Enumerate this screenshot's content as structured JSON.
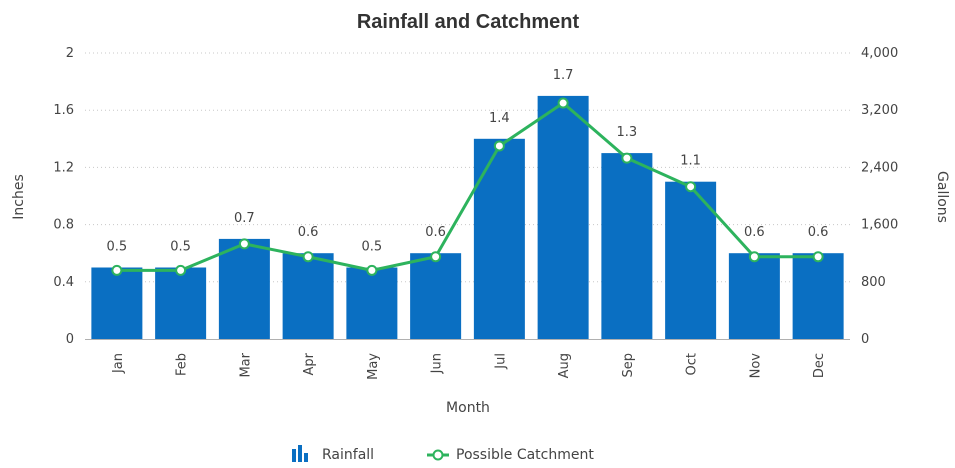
{
  "chart_data": {
    "type": "bar",
    "title": "Rainfall and Catchment",
    "xlabel": "Month",
    "ylabel": "Inches",
    "y2label": "Gallons",
    "categories": [
      "Jan",
      "Feb",
      "Mar",
      "Apr",
      "May",
      "Jun",
      "Jul",
      "Aug",
      "Sep",
      "Oct",
      "Nov",
      "Dec"
    ],
    "ylim": [
      0,
      2
    ],
    "y2lim": [
      0,
      4000
    ],
    "y_ticks": [
      "0",
      "0.4",
      "0.8",
      "1.2",
      "1.6",
      "2"
    ],
    "y2_ticks": [
      "0",
      "800",
      "1,600",
      "2,400",
      "3,200",
      "4,000"
    ],
    "grid": true,
    "legend_position": "bottom-center",
    "series": [
      {
        "name": "Rainfall",
        "type": "bar",
        "axis": "left",
        "color": "#0a6fc2",
        "values": [
          0.5,
          0.5,
          0.7,
          0.6,
          0.5,
          0.6,
          1.4,
          1.7,
          1.3,
          1.1,
          0.6,
          0.6
        ],
        "labels": [
          "0.5",
          "0.5",
          "0.7",
          "0.6",
          "0.5",
          "0.6",
          "1.4",
          "1.7",
          "1.3",
          "1.1",
          "0.6",
          "0.6"
        ]
      },
      {
        "name": "Possible Catchment",
        "type": "line",
        "axis": "right",
        "color": "#2db35d",
        "values": [
          960,
          960,
          1330,
          1150,
          960,
          1150,
          2700,
          3300,
          2530,
          2130,
          1150,
          1150
        ]
      }
    ]
  }
}
